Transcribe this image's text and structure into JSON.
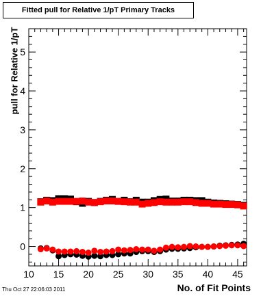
{
  "title": "Fitted pull for Relative 1/pT Primary Tracks",
  "timestamp": "Thu Oct 27 22:06:03 2011",
  "chart_data": {
    "type": "scatter",
    "title": "Fitted pull for Relative 1/pT Primary Tracks",
    "xlabel": "No. of Fit Points",
    "ylabel": "pull for Relative 1/pT",
    "xlim": [
      10,
      46.5
    ],
    "ylim": [
      -0.5,
      5.6
    ],
    "xticks": [
      10,
      15,
      20,
      25,
      30,
      35,
      40,
      45
    ],
    "yticks": [
      0,
      1,
      2,
      3,
      4,
      5
    ],
    "x": [
      12,
      13,
      14,
      15,
      16,
      17,
      18,
      19,
      20,
      21,
      22,
      23,
      24,
      25,
      26,
      27,
      28,
      29,
      30,
      31,
      32,
      33,
      34,
      35,
      36,
      37,
      38,
      39,
      40,
      41,
      42,
      43,
      44,
      45,
      46
    ],
    "series": [
      {
        "color": "#000000",
        "marker": "square",
        "values": [
          1.15,
          1.19,
          1.18,
          1.23,
          1.23,
          1.22,
          1.15,
          1.11,
          1.16,
          1.13,
          1.16,
          1.19,
          1.21,
          1.16,
          1.19,
          1.15,
          1.19,
          1.14,
          1.14,
          1.18,
          1.21,
          1.22,
          1.17,
          1.17,
          1.19,
          1.19,
          1.18,
          1.18,
          1.14,
          1.12,
          1.11,
          1.1,
          1.09,
          1.08,
          1.06
        ]
      },
      {
        "color": "#ff0000",
        "marker": "square",
        "values": [
          1.14,
          1.17,
          1.14,
          1.16,
          1.16,
          1.16,
          1.16,
          1.17,
          1.14,
          1.13,
          1.15,
          1.17,
          1.17,
          1.16,
          1.15,
          1.14,
          1.14,
          1.09,
          1.11,
          1.13,
          1.15,
          1.14,
          1.14,
          1.14,
          1.15,
          1.15,
          1.13,
          1.11,
          1.11,
          1.09,
          1.09,
          1.08,
          1.08,
          1.07,
          1.04
        ]
      },
      {
        "color": "#000000",
        "marker": "circle",
        "values": [
          -0.05,
          -0.04,
          -0.1,
          -0.25,
          -0.22,
          -0.2,
          -0.21,
          -0.24,
          -0.26,
          -0.24,
          -0.25,
          -0.22,
          -0.22,
          -0.2,
          -0.18,
          -0.18,
          -0.14,
          -0.12,
          -0.12,
          -0.14,
          -0.12,
          -0.08,
          -0.06,
          -0.06,
          -0.05,
          -0.04,
          -0.02,
          -0.01,
          -0.01,
          0.0,
          0.02,
          0.03,
          0.04,
          0.05,
          0.07
        ]
      },
      {
        "color": "#ff0000",
        "marker": "circle",
        "values": [
          -0.07,
          -0.05,
          -0.08,
          -0.13,
          -0.13,
          -0.13,
          -0.12,
          -0.14,
          -0.16,
          -0.11,
          -0.14,
          -0.13,
          -0.12,
          -0.08,
          -0.1,
          -0.09,
          -0.07,
          -0.08,
          -0.08,
          -0.11,
          -0.08,
          -0.03,
          -0.01,
          -0.02,
          -0.01,
          0.01,
          0.0,
          -0.01,
          -0.01,
          0.0,
          0.01,
          0.02,
          0.03,
          0.03,
          0.01
        ]
      }
    ]
  }
}
